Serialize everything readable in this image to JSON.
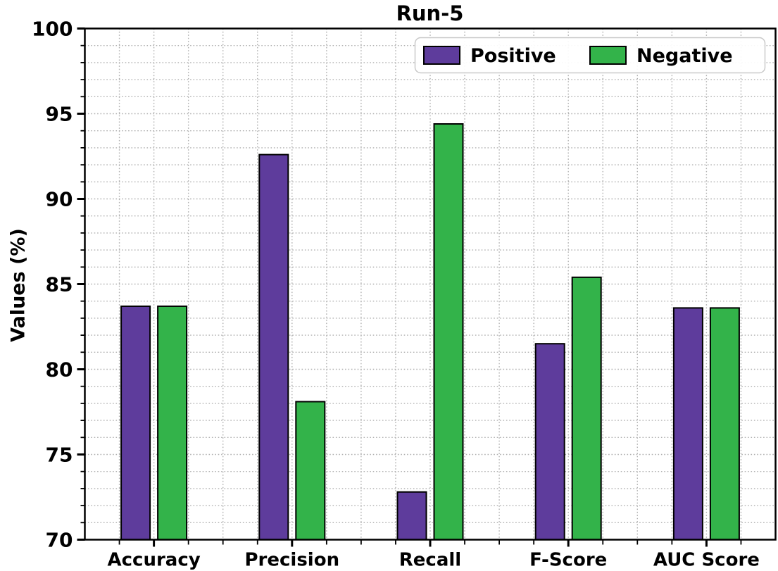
{
  "chart_data": {
    "type": "bar",
    "title": "Run-5",
    "xlabel": "",
    "ylabel": "Values (%)",
    "categories": [
      "Accuracy",
      "Precision",
      "Recall",
      "F-Score",
      "AUC Score"
    ],
    "series": [
      {
        "name": "Positive",
        "color": "#5E3C9C",
        "values": [
          83.7,
          92.6,
          72.8,
          81.5,
          83.6
        ]
      },
      {
        "name": "Negative",
        "color": "#33B34A",
        "values": [
          83.7,
          78.1,
          94.4,
          85.4,
          83.6
        ]
      }
    ],
    "ylim": [
      70,
      100
    ],
    "yticks": [
      70,
      75,
      80,
      85,
      90,
      95,
      100
    ],
    "minor_unit": 1,
    "grid": "dotted gray, horizontal every 1 unit, vertical every quarter category",
    "legend_position": "upper right inside plot",
    "bar_edge_color": "#000000",
    "grid_color": "#b0b0b0",
    "legend_border_color": "#c9c9c9",
    "background_color": "#ffffff"
  }
}
